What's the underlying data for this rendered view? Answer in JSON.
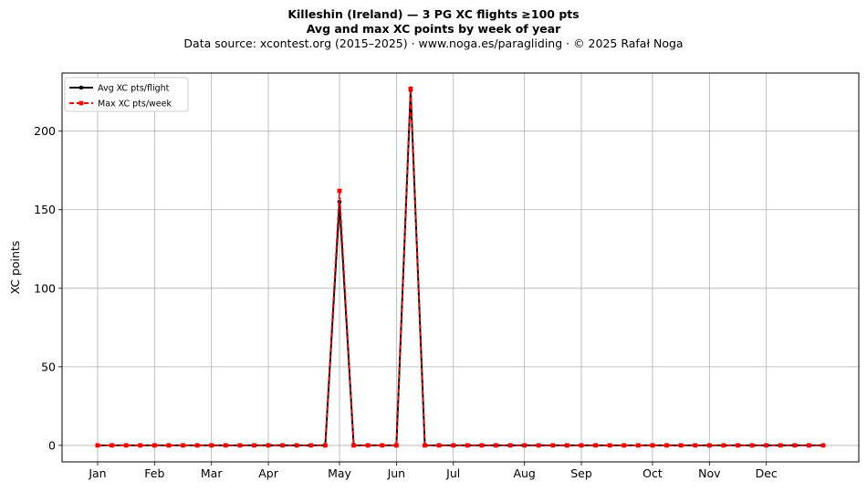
{
  "header": {
    "title_line1": "Killeshin (Ireland)  —  3 PG XC flights ≥100 pts",
    "title_line2": "Avg and max XC points by week of year",
    "subtitle": "Data source: xcontest.org (2015–2025)  ·  www.noga.es/paragliding  ·  © 2025 Rafał Noga"
  },
  "chart_data": {
    "type": "line",
    "title": "Killeshin (Ireland)  —  3 PG XC flights ≥100 pts",
    "subtitle": "Avg and max XC points by week of year",
    "xlabel": "",
    "ylabel": "XC points",
    "x_tick_labels": [
      "Jan",
      "Feb",
      "Mar",
      "Apr",
      "May",
      "Jun",
      "Jul",
      "Aug",
      "Sep",
      "Oct",
      "Nov",
      "Dec"
    ],
    "x_tick_weeks": [
      1,
      5,
      9,
      13,
      18,
      22,
      26,
      31,
      35,
      40,
      44,
      48
    ],
    "xlim": [
      -1.5,
      54.5
    ],
    "y_ticks": [
      0,
      50,
      100,
      150,
      200
    ],
    "ylim": [
      -10.5,
      237
    ],
    "grid": true,
    "legend_position": "top-left",
    "x": [
      1,
      2,
      3,
      4,
      5,
      6,
      7,
      8,
      9,
      10,
      11,
      12,
      13,
      14,
      15,
      16,
      17,
      18,
      19,
      20,
      21,
      22,
      23,
      24,
      25,
      26,
      27,
      28,
      29,
      30,
      31,
      32,
      33,
      34,
      35,
      36,
      37,
      38,
      39,
      40,
      41,
      42,
      43,
      44,
      45,
      46,
      47,
      48,
      49,
      50,
      51,
      52
    ],
    "series": [
      {
        "name": "Avg XC pts/flight",
        "color": "#000000",
        "marker": "circle",
        "style": "solid",
        "values": [
          0,
          0,
          0,
          0,
          0,
          0,
          0,
          0,
          0,
          0,
          0,
          0,
          0,
          0,
          0,
          0,
          0,
          155,
          0,
          0,
          0,
          0,
          226,
          0,
          0,
          0,
          0,
          0,
          0,
          0,
          0,
          0,
          0,
          0,
          0,
          0,
          0,
          0,
          0,
          0,
          0,
          0,
          0,
          0,
          0,
          0,
          0,
          0,
          0,
          0,
          0,
          0
        ]
      },
      {
        "name": "Max XC pts/week",
        "color": "#ff0000",
        "marker": "square",
        "style": "dashed",
        "values": [
          0,
          0,
          0,
          0,
          0,
          0,
          0,
          0,
          0,
          0,
          0,
          0,
          0,
          0,
          0,
          0,
          0,
          162,
          0,
          0,
          0,
          0,
          227,
          0,
          0,
          0,
          0,
          0,
          0,
          0,
          0,
          0,
          0,
          0,
          0,
          0,
          0,
          0,
          0,
          0,
          0,
          0,
          0,
          0,
          0,
          0,
          0,
          0,
          0,
          0,
          0,
          0
        ]
      }
    ]
  }
}
